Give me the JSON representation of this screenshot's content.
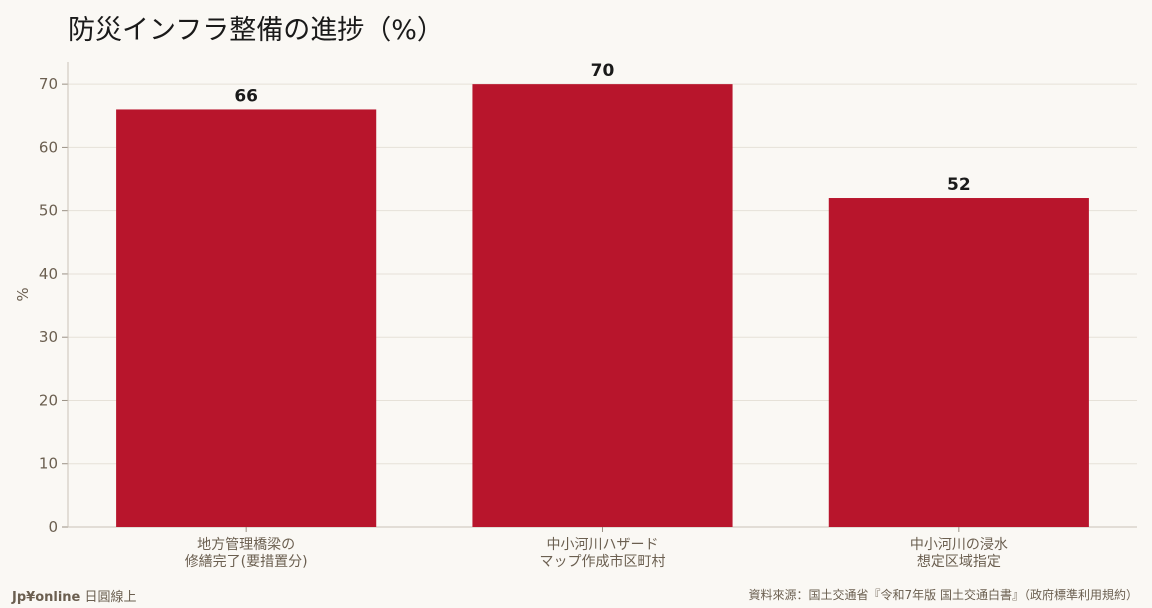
{
  "header": {
    "title": "防災インフラ整備の進捗（%）"
  },
  "footer": {
    "brand": "Jp¥online",
    "brand_suffix": "日圓線上",
    "source": "資料來源：国土交通省『令和7年版 国土交通白書』（政府標準利用規約）"
  },
  "colors": {
    "bar": "#b8152c",
    "background": "#faf8f4",
    "grid": "#e6e1d8",
    "axis_text": "#6b5f50"
  },
  "chart_data": {
    "type": "bar",
    "categories": [
      [
        "地方管理橋梁の",
        "修繕完了(要措置分)"
      ],
      [
        "中小河川ハザード",
        "マップ作成市区町村"
      ],
      [
        "中小河川の浸水",
        "想定区域指定"
      ]
    ],
    "values": [
      66,
      70,
      52
    ],
    "value_labels": [
      "66",
      "70",
      "52"
    ],
    "title": "防災インフラ整備の進捗（%）",
    "xlabel": "",
    "ylabel": "%",
    "ylim": [
      0,
      73.5
    ],
    "yticks": [
      0,
      10,
      20,
      30,
      40,
      50,
      60,
      70
    ],
    "grid": true,
    "legend": "none"
  }
}
